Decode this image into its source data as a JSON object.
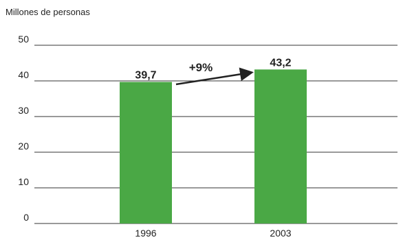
{
  "chart_data": {
    "type": "bar",
    "ylabel": "Millones de personas",
    "categories": [
      "1996",
      "2003"
    ],
    "values": [
      39.7,
      43.2
    ],
    "value_labels": [
      "39,7",
      "43,2"
    ],
    "ylim": [
      0,
      50
    ],
    "yticks": [
      0,
      10,
      20,
      30,
      40,
      50
    ],
    "grid": true,
    "annotations": [
      {
        "text": "+9%",
        "type": "arrow",
        "from_category": "1996",
        "to_category": "2003"
      }
    ],
    "colors": {
      "bar": "#4aa845",
      "grid": "#333333",
      "text": "#222222",
      "arrow": "#222222"
    }
  }
}
